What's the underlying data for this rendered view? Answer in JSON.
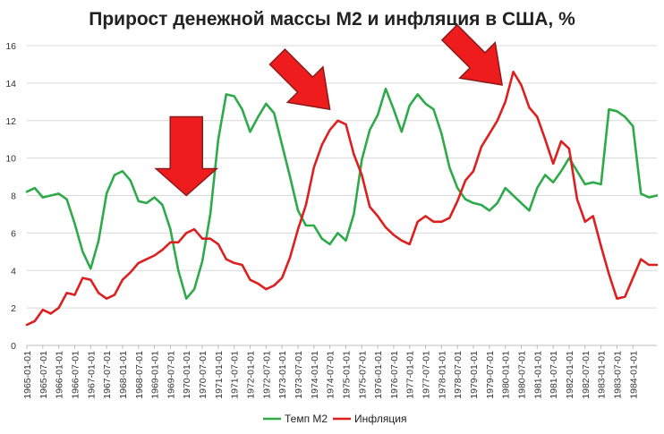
{
  "chart_data": {
    "type": "line",
    "title": "Прирост денежной массы М2 и инфляция в США, %",
    "xlabel": "",
    "ylabel": "",
    "ylim": [
      0,
      16
    ],
    "yticks": [
      "0",
      "2",
      "4",
      "6",
      "8",
      "10",
      "12",
      "14",
      "16"
    ],
    "x_tick_labels": [
      "1965-01-01",
      "1965-07-01",
      "1966-01-01",
      "1966-07-01",
      "1967-01-01",
      "1967-07-01",
      "1968-01-01",
      "1968-07-01",
      "1969-01-01",
      "1969-07-01",
      "1970-01-01",
      "1970-07-01",
      "1971-01-01",
      "1971-07-01",
      "1972-01-01",
      "1972-07-01",
      "1973-01-01",
      "1973-07-01",
      "1974-01-01",
      "1974-07-01",
      "1975-01-01",
      "1975-07-01",
      "1976-01-01",
      "1976-07-01",
      "1977-01-01",
      "1977-07-01",
      "1978-01-01",
      "1978-07-01",
      "1979-01-01",
      "1979-07-01",
      "1980-01-01",
      "1980-07-01",
      "1981-01-01",
      "1981-07-01",
      "1982-01-01",
      "1982-07-01",
      "1983-01-01",
      "1983-07-01",
      "1984-01-01"
    ],
    "x_range": [
      1965.0,
      1984.75
    ],
    "grid": true,
    "legend_position": "bottom-center",
    "series": [
      {
        "name": "Темп М2",
        "color": "#2eaa4a",
        "points": [
          [
            1965.0,
            8.2
          ],
          [
            1965.25,
            8.4
          ],
          [
            1965.5,
            7.9
          ],
          [
            1965.75,
            8.0
          ],
          [
            1966.0,
            8.1
          ],
          [
            1966.25,
            7.8
          ],
          [
            1966.5,
            6.5
          ],
          [
            1966.75,
            5.0
          ],
          [
            1967.0,
            4.1
          ],
          [
            1967.25,
            5.6
          ],
          [
            1967.5,
            8.1
          ],
          [
            1967.75,
            9.1
          ],
          [
            1968.0,
            9.3
          ],
          [
            1968.25,
            8.8
          ],
          [
            1968.5,
            7.7
          ],
          [
            1968.75,
            7.6
          ],
          [
            1969.0,
            7.9
          ],
          [
            1969.25,
            7.5
          ],
          [
            1969.5,
            6.2
          ],
          [
            1969.75,
            4.0
          ],
          [
            1970.0,
            2.5
          ],
          [
            1970.25,
            3.0
          ],
          [
            1970.5,
            4.5
          ],
          [
            1970.75,
            7.0
          ],
          [
            1971.0,
            11.0
          ],
          [
            1971.25,
            13.4
          ],
          [
            1971.5,
            13.3
          ],
          [
            1971.75,
            12.6
          ],
          [
            1972.0,
            11.4
          ],
          [
            1972.25,
            12.2
          ],
          [
            1972.5,
            12.9
          ],
          [
            1972.75,
            12.4
          ],
          [
            1973.0,
            10.7
          ],
          [
            1973.25,
            9.0
          ],
          [
            1973.5,
            7.2
          ],
          [
            1973.75,
            6.4
          ],
          [
            1974.0,
            6.4
          ],
          [
            1974.25,
            5.7
          ],
          [
            1974.5,
            5.4
          ],
          [
            1974.75,
            6.0
          ],
          [
            1975.0,
            5.6
          ],
          [
            1975.25,
            7.0
          ],
          [
            1975.5,
            9.9
          ],
          [
            1975.75,
            11.5
          ],
          [
            1976.0,
            12.3
          ],
          [
            1976.25,
            13.7
          ],
          [
            1976.5,
            12.6
          ],
          [
            1976.75,
            11.4
          ],
          [
            1977.0,
            12.8
          ],
          [
            1977.25,
            13.4
          ],
          [
            1977.5,
            12.9
          ],
          [
            1977.75,
            12.6
          ],
          [
            1978.0,
            11.3
          ],
          [
            1978.25,
            9.5
          ],
          [
            1978.5,
            8.4
          ],
          [
            1978.75,
            7.8
          ],
          [
            1979.0,
            7.6
          ],
          [
            1979.25,
            7.5
          ],
          [
            1979.5,
            7.2
          ],
          [
            1979.75,
            7.6
          ],
          [
            1980.0,
            8.4
          ],
          [
            1980.25,
            8.0
          ],
          [
            1980.5,
            7.6
          ],
          [
            1980.75,
            7.2
          ],
          [
            1981.0,
            8.4
          ],
          [
            1981.25,
            9.1
          ],
          [
            1981.5,
            8.7
          ],
          [
            1981.75,
            9.3
          ],
          [
            1982.0,
            10.0
          ],
          [
            1982.25,
            9.3
          ],
          [
            1982.5,
            8.6
          ],
          [
            1982.75,
            8.7
          ],
          [
            1983.0,
            8.6
          ],
          [
            1983.25,
            12.6
          ],
          [
            1983.5,
            12.5
          ],
          [
            1983.75,
            12.2
          ],
          [
            1984.0,
            11.7
          ],
          [
            1984.25,
            8.1
          ],
          [
            1984.5,
            7.9
          ],
          [
            1984.75,
            8.0
          ]
        ]
      },
      {
        "name": "Инфляция",
        "color": "#dd1f1f",
        "points": [
          [
            1965.0,
            1.1
          ],
          [
            1965.25,
            1.3
          ],
          [
            1965.5,
            1.9
          ],
          [
            1965.75,
            1.7
          ],
          [
            1966.0,
            2.0
          ],
          [
            1966.25,
            2.8
          ],
          [
            1966.5,
            2.7
          ],
          [
            1966.75,
            3.6
          ],
          [
            1967.0,
            3.5
          ],
          [
            1967.25,
            2.8
          ],
          [
            1967.5,
            2.5
          ],
          [
            1967.75,
            2.7
          ],
          [
            1968.0,
            3.5
          ],
          [
            1968.25,
            3.9
          ],
          [
            1968.5,
            4.4
          ],
          [
            1968.75,
            4.6
          ],
          [
            1969.0,
            4.8
          ],
          [
            1969.25,
            5.1
          ],
          [
            1969.5,
            5.5
          ],
          [
            1969.75,
            5.5
          ],
          [
            1970.0,
            6.0
          ],
          [
            1970.25,
            6.2
          ],
          [
            1970.5,
            5.7
          ],
          [
            1970.75,
            5.7
          ],
          [
            1971.0,
            5.4
          ],
          [
            1971.25,
            4.6
          ],
          [
            1971.5,
            4.4
          ],
          [
            1971.75,
            4.3
          ],
          [
            1972.0,
            3.5
          ],
          [
            1972.25,
            3.3
          ],
          [
            1972.5,
            3.0
          ],
          [
            1972.75,
            3.2
          ],
          [
            1973.0,
            3.6
          ],
          [
            1973.25,
            4.7
          ],
          [
            1973.5,
            6.2
          ],
          [
            1973.75,
            7.5
          ],
          [
            1974.0,
            9.5
          ],
          [
            1974.25,
            10.7
          ],
          [
            1974.5,
            11.5
          ],
          [
            1974.75,
            12.0
          ],
          [
            1975.0,
            11.8
          ],
          [
            1975.25,
            10.2
          ],
          [
            1975.5,
            9.1
          ],
          [
            1975.75,
            7.4
          ],
          [
            1976.0,
            6.9
          ],
          [
            1976.25,
            6.3
          ],
          [
            1976.5,
            5.9
          ],
          [
            1976.75,
            5.6
          ],
          [
            1977.0,
            5.4
          ],
          [
            1977.25,
            6.6
          ],
          [
            1977.5,
            6.9
          ],
          [
            1977.75,
            6.6
          ],
          [
            1978.0,
            6.6
          ],
          [
            1978.25,
            6.8
          ],
          [
            1978.5,
            7.7
          ],
          [
            1978.75,
            8.8
          ],
          [
            1979.0,
            9.3
          ],
          [
            1979.25,
            10.6
          ],
          [
            1979.5,
            11.3
          ],
          [
            1979.75,
            12.0
          ],
          [
            1980.0,
            13.0
          ],
          [
            1980.25,
            14.6
          ],
          [
            1980.5,
            13.9
          ],
          [
            1980.75,
            12.7
          ],
          [
            1981.0,
            12.2
          ],
          [
            1981.25,
            11.0
          ],
          [
            1981.5,
            9.7
          ],
          [
            1981.75,
            10.9
          ],
          [
            1982.0,
            10.5
          ],
          [
            1982.25,
            7.8
          ],
          [
            1982.5,
            6.6
          ],
          [
            1982.75,
            6.9
          ],
          [
            1983.0,
            5.3
          ],
          [
            1983.25,
            3.8
          ],
          [
            1983.5,
            2.5
          ],
          [
            1983.75,
            2.6
          ],
          [
            1984.0,
            3.6
          ],
          [
            1984.25,
            4.6
          ],
          [
            1984.5,
            4.3
          ],
          [
            1984.75,
            4.3
          ]
        ]
      }
    ],
    "annotations": [
      {
        "type": "arrow",
        "direction": "down",
        "color": "#ee1c1c",
        "target_x": 1970.0,
        "target_y": 8.0
      },
      {
        "type": "arrow",
        "direction": "down-right",
        "color": "#ee1c1c",
        "target_x": 1974.5,
        "target_y": 12.6
      },
      {
        "type": "arrow",
        "direction": "down-right",
        "color": "#ee1c1c",
        "target_x": 1979.9,
        "target_y": 13.9
      }
    ]
  }
}
